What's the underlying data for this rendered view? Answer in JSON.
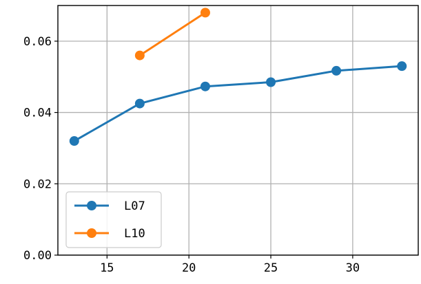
{
  "chart_data": {
    "type": "line",
    "title": "",
    "xlabel": "",
    "ylabel": "",
    "xlim": [
      12,
      34
    ],
    "ylim": [
      0,
      0.07
    ],
    "xticks": [
      15,
      20,
      25,
      30
    ],
    "xtick_labels": [
      "15",
      "20",
      "25",
      "30"
    ],
    "yticks": [
      0,
      0.02,
      0.04,
      0.06
    ],
    "ytick_labels": [
      "0.00",
      "0.02",
      "0.04",
      "0.06"
    ],
    "grid": true,
    "legend_position": "lower-left",
    "series": [
      {
        "name": "L07",
        "color": "#1f77b4",
        "marker": "circle",
        "x": [
          13,
          17,
          21,
          25,
          29,
          33
        ],
        "y": [
          0.032,
          0.0425,
          0.0473,
          0.0485,
          0.0517,
          0.053
        ]
      },
      {
        "name": "L10",
        "color": "#ff7f0e",
        "marker": "circle",
        "x": [
          17,
          21
        ],
        "y": [
          0.056,
          0.068
        ]
      }
    ]
  }
}
